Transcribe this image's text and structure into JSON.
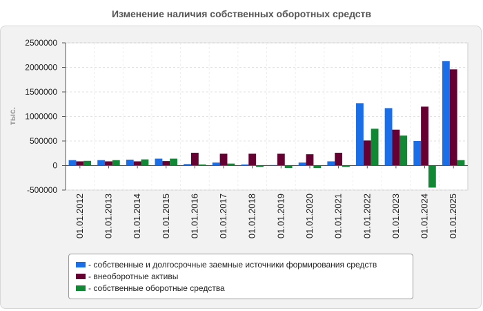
{
  "title": "Изменение наличия собственных оборотных средств",
  "chart_data": {
    "type": "bar",
    "ylabel": "тыс.",
    "xlabel": "",
    "ylim": [
      -500000,
      2500000
    ],
    "yticks": [
      -500000,
      0,
      500000,
      1000000,
      1500000,
      2000000,
      2500000
    ],
    "grid": true,
    "legend_position": "bottom",
    "categories": [
      "01.01.2012",
      "01.01.2013",
      "01.01.2014",
      "01.01.2015",
      "01.01.2016",
      "01.01.2017",
      "01.01.2018",
      "01.01.2019",
      "01.01.2020",
      "01.01.2021",
      "01.01.2022",
      "01.01.2023",
      "01.01.2024",
      "01.01.2025"
    ],
    "series": [
      {
        "name": "- собственные и долгосрочные заемные источники формирования средств",
        "color": "#1a6fe8",
        "values": [
          110000,
          110000,
          120000,
          140000,
          30000,
          60000,
          20000,
          10000,
          60000,
          85000,
          1270000,
          1170000,
          500000,
          2130000
        ]
      },
      {
        "name": "- внеоборотные активы",
        "color": "#660033",
        "values": [
          85000,
          85000,
          85000,
          90000,
          260000,
          240000,
          240000,
          240000,
          230000,
          260000,
          510000,
          730000,
          1200000,
          1960000
        ]
      },
      {
        "name": "- собственные оборотные средства",
        "color": "#118833",
        "values": [
          95000,
          110000,
          125000,
          140000,
          20000,
          40000,
          -30000,
          -50000,
          -50000,
          -30000,
          750000,
          610000,
          -450000,
          110000
        ]
      }
    ]
  }
}
